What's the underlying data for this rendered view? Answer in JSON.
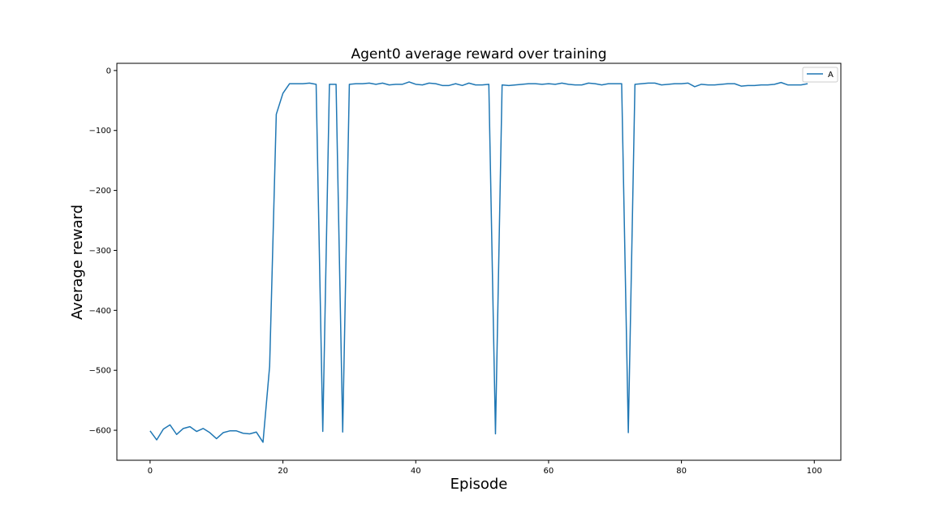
{
  "chart_data": {
    "type": "line",
    "title": "Agent0 average reward over training",
    "xlabel": "Episode",
    "ylabel": "Average reward",
    "xlim": [
      -5,
      104
    ],
    "ylim": [
      -650,
      12
    ],
    "xticks": [
      0,
      20,
      40,
      60,
      80,
      100
    ],
    "yticks": [
      0,
      -100,
      -200,
      -300,
      -400,
      -500,
      -600
    ],
    "grid": false,
    "legend_position": "top-right",
    "series": [
      {
        "name": "A",
        "color": "#1f77b4",
        "x": [
          0,
          1,
          2,
          3,
          4,
          5,
          6,
          7,
          8,
          9,
          10,
          11,
          12,
          13,
          14,
          15,
          16,
          17,
          18,
          19,
          20,
          21,
          22,
          23,
          24,
          25,
          26,
          27,
          28,
          29,
          30,
          31,
          32,
          33,
          34,
          35,
          36,
          37,
          38,
          39,
          40,
          41,
          42,
          43,
          44,
          45,
          46,
          47,
          48,
          49,
          50,
          51,
          52,
          53,
          54,
          55,
          56,
          57,
          58,
          59,
          60,
          61,
          62,
          63,
          64,
          65,
          66,
          67,
          68,
          69,
          70,
          71,
          72,
          73,
          74,
          75,
          76,
          77,
          78,
          79,
          80,
          81,
          82,
          83,
          84,
          85,
          86,
          87,
          88,
          89,
          90,
          91,
          92,
          93,
          94,
          95,
          96,
          97,
          98,
          99
        ],
        "y": [
          -601,
          -616,
          -598,
          -591,
          -607,
          -597,
          -594,
          -602,
          -597,
          -604,
          -614,
          -604,
          -601,
          -601,
          -605,
          -606,
          -603,
          -620,
          -493,
          -73,
          -38,
          -22,
          -22,
          -22,
          -21,
          -23,
          -602,
          -23,
          -23,
          -603,
          -23,
          -22,
          -22,
          -21,
          -23,
          -21,
          -24,
          -23,
          -23,
          -19,
          -23,
          -24,
          -21,
          -22,
          -25,
          -25,
          -22,
          -25,
          -21,
          -24,
          -24,
          -23,
          -606,
          -24,
          -25,
          -24,
          -23,
          -22,
          -22,
          -23,
          -22,
          -23,
          -21,
          -23,
          -24,
          -24,
          -21,
          -22,
          -24,
          -22,
          -22,
          -22,
          -604,
          -23,
          -22,
          -21,
          -21,
          -24,
          -23,
          -22,
          -22,
          -21,
          -27,
          -23,
          -24,
          -24,
          -23,
          -22,
          -22,
          -26,
          -25,
          -25,
          -24,
          -24,
          -23,
          -20,
          -24,
          -24,
          -24,
          -22
        ]
      }
    ]
  }
}
